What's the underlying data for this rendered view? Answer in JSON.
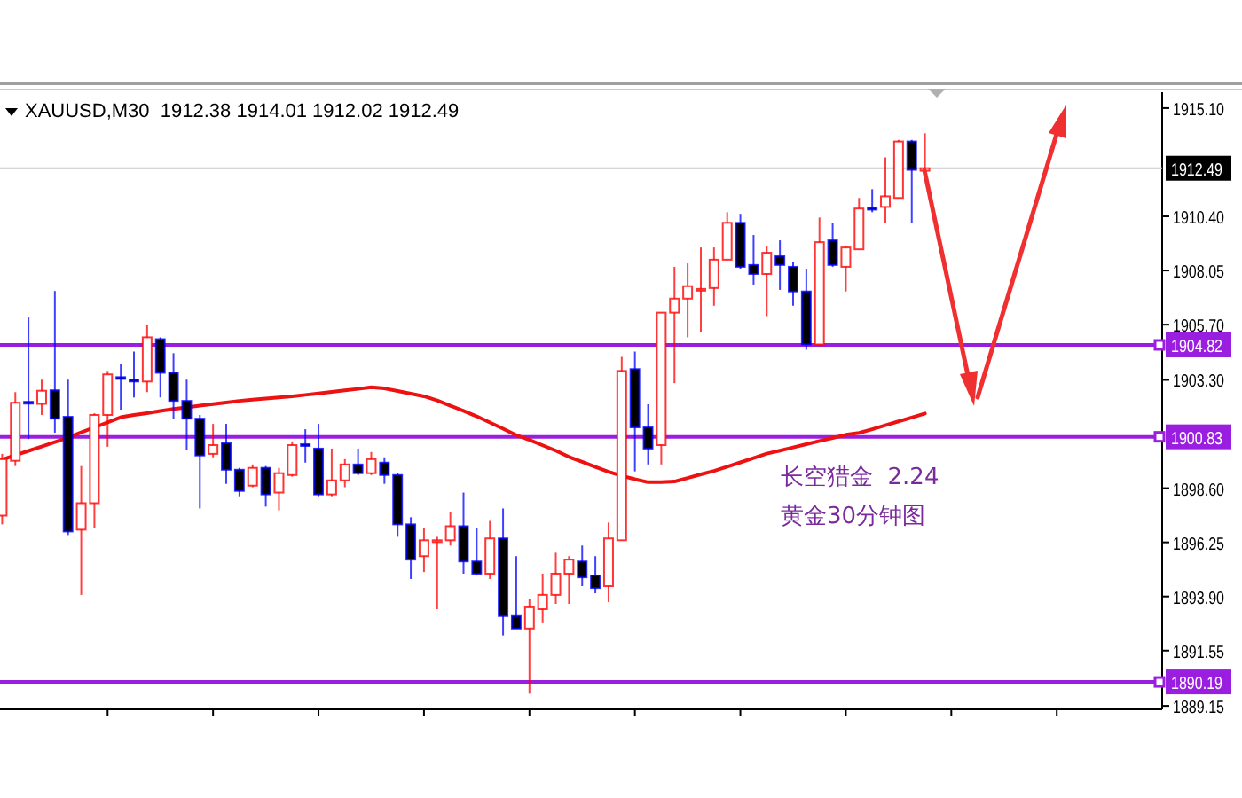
{
  "chart_data": {
    "type": "candlestick",
    "title": "XAUUSD,M30  1912.38 1914.01 1912.02 1912.49",
    "categories": [
      null,
      null,
      null,
      null,
      null,
      null,
      null,
      null,
      null,
      null,
      null,
      null,
      null,
      null,
      null,
      null,
      null,
      null,
      null,
      null,
      null,
      null,
      null,
      null,
      null,
      null,
      null,
      null,
      null,
      null,
      null,
      null,
      null,
      null,
      null,
      null,
      null,
      null,
      null,
      null,
      null,
      null,
      null,
      null,
      null,
      null,
      null,
      null,
      null,
      null,
      null,
      null,
      null,
      null,
      null,
      null,
      null,
      null,
      null,
      null,
      null,
      null,
      null,
      null,
      null,
      null,
      null,
      null,
      null,
      null,
      null
    ],
    "series": [
      {
        "type": "candlestick",
        "ohlc": [
          [
            1897.41,
            1900.09,
            1897.03,
            1899.86
          ],
          [
            1899.79,
            1902.77,
            1899.56,
            1902.31
          ],
          [
            1902.35,
            1906.01,
            1900.73,
            1902.27
          ],
          [
            1902.26,
            1903.31,
            1901.78,
            1902.83
          ],
          [
            1902.85,
            1907.16,
            1901.01,
            1901.62
          ],
          [
            1901.7,
            1903.31,
            1896.57,
            1896.72
          ],
          [
            1896.8,
            1899.56,
            1893.97,
            1897.95
          ],
          [
            1897.95,
            1901.85,
            1896.88,
            1901.78
          ],
          [
            1901.78,
            1903.69,
            1900.4,
            1903.54
          ],
          [
            1903.42,
            1904.0,
            1902.01,
            1903.35
          ],
          [
            1903.31,
            1904.53,
            1902.54,
            1903.23
          ],
          [
            1903.23,
            1905.68,
            1902.77,
            1905.15
          ],
          [
            1905.07,
            1905.15,
            1902.54,
            1903.61
          ],
          [
            1903.61,
            1904.46,
            1901.62,
            1902.39
          ],
          [
            1902.39,
            1903.31,
            1900.25,
            1901.62
          ],
          [
            1901.62,
            1901.78,
            1897.72,
            1900.02
          ],
          [
            1900.09,
            1901.39,
            1899.94,
            1900.47
          ],
          [
            1900.55,
            1901.39,
            1898.79,
            1899.4
          ],
          [
            1899.4,
            1899.48,
            1898.25,
            1898.48
          ],
          [
            1898.71,
            1899.63,
            1898.64,
            1899.48
          ],
          [
            1899.48,
            1899.56,
            1897.8,
            1898.33
          ],
          [
            1898.41,
            1899.48,
            1897.64,
            1899.25
          ],
          [
            1899.17,
            1900.63,
            1899.1,
            1900.47
          ],
          [
            1900.51,
            1901.16,
            1899.71,
            1900.44
          ],
          [
            1900.32,
            1901.39,
            1898.25,
            1898.33
          ],
          [
            1898.33,
            1900.32,
            1898.25,
            1898.94
          ],
          [
            1898.94,
            1899.86,
            1898.64,
            1899.63
          ],
          [
            1899.63,
            1900.32,
            1899.17,
            1899.25
          ],
          [
            1899.25,
            1900.17,
            1899.17,
            1899.86
          ],
          [
            1899.71,
            1899.94,
            1898.79,
            1899.17
          ],
          [
            1899.17,
            1899.25,
            1896.49,
            1897.03
          ],
          [
            1897.03,
            1897.34,
            1894.66,
            1895.5
          ],
          [
            1895.65,
            1896.88,
            1894.96,
            1896.34
          ],
          [
            1896.26,
            1896.49,
            1893.35,
            1896.34
          ],
          [
            1896.34,
            1897.56,
            1896.11,
            1896.95
          ],
          [
            1896.95,
            1898.41,
            1894.89,
            1895.42
          ],
          [
            1895.42,
            1896.88,
            1894.81,
            1894.89
          ],
          [
            1894.89,
            1897.18,
            1894.66,
            1896.42
          ],
          [
            1896.42,
            1897.72,
            1892.21,
            1893.05
          ],
          [
            1893.05,
            1895.65,
            1892.51,
            1892.51
          ],
          [
            1892.51,
            1893.81,
            1889.68,
            1893.43
          ],
          [
            1893.35,
            1894.89,
            1892.74,
            1893.97
          ],
          [
            1893.97,
            1895.8,
            1893.58,
            1894.89
          ],
          [
            1894.89,
            1895.65,
            1893.58,
            1895.5
          ],
          [
            1895.42,
            1896.11,
            1894.35,
            1894.73
          ],
          [
            1894.81,
            1895.65,
            1894.04,
            1894.27
          ],
          [
            1894.35,
            1897.11,
            1893.66,
            1896.42
          ],
          [
            1896.34,
            1904.3,
            1896.34,
            1903.69
          ],
          [
            1903.77,
            1904.53,
            1899.33,
            1901.24
          ],
          [
            1901.24,
            1902.24,
            1899.63,
            1900.32
          ],
          [
            1900.47,
            1906.22,
            1899.63,
            1906.22
          ],
          [
            1906.22,
            1908.21,
            1903.16,
            1906.83
          ],
          [
            1906.83,
            1908.36,
            1905.15,
            1907.37
          ],
          [
            1907.18,
            1909.05,
            1905.38,
            1907.25
          ],
          [
            1907.29,
            1909.05,
            1906.52,
            1908.52
          ],
          [
            1908.52,
            1910.58,
            1908.52,
            1910.12
          ],
          [
            1910.12,
            1910.51,
            1908.13,
            1908.21
          ],
          [
            1908.29,
            1909.59,
            1907.44,
            1907.9
          ],
          [
            1907.9,
            1909.13,
            1906.07,
            1908.82
          ],
          [
            1908.67,
            1909.36,
            1907.21,
            1908.29
          ],
          [
            1908.21,
            1908.44,
            1906.52,
            1907.14
          ],
          [
            1907.14,
            1908.13,
            1904.61,
            1904.84
          ],
          [
            1904.84,
            1910.35,
            1904.76,
            1909.28
          ],
          [
            1909.36,
            1910.12,
            1908.21,
            1908.29
          ],
          [
            1908.21,
            1909.13,
            1907.14,
            1909.05
          ],
          [
            1908.97,
            1911.2,
            1908.97,
            1910.74
          ],
          [
            1910.77,
            1911.58,
            1910.58,
            1910.7
          ],
          [
            1910.81,
            1912.96,
            1910.12,
            1911.27
          ],
          [
            1911.2,
            1913.72,
            1911.2,
            1913.65
          ],
          [
            1913.65,
            1913.72,
            1910.12,
            1912.42
          ],
          [
            1912.38,
            1914.01,
            1912.02,
            1912.49
          ]
        ],
        "colors": [
          "#ff0000",
          "#ff0000",
          "#0000ff",
          "#ff0000",
          "#0000ff",
          "#0000ff",
          "#ff0000",
          "#ff0000",
          "#ff0000",
          "#0000ff",
          "#0000ff",
          "#ff0000",
          "#0000ff",
          "#0000ff",
          "#0000ff",
          "#0000ff",
          "#ff0000",
          "#0000ff",
          "#0000ff",
          "#ff0000",
          "#0000ff",
          "#ff0000",
          "#ff0000",
          "#0000ff",
          "#0000ff",
          "#ff0000",
          "#ff0000",
          "#0000ff",
          "#ff0000",
          "#0000ff",
          "#0000ff",
          "#0000ff",
          "#ff0000",
          "#ff0000",
          "#ff0000",
          "#0000ff",
          "#0000ff",
          "#ff0000",
          "#0000ff",
          "#0000ff",
          "#ff0000",
          "#ff0000",
          "#ff0000",
          "#ff0000",
          "#0000ff",
          "#0000ff",
          "#ff0000",
          "#ff0000",
          "#0000ff",
          "#0000ff",
          "#ff0000",
          "#ff0000",
          "#ff0000",
          "#ff0000",
          "#ff0000",
          "#ff0000",
          "#0000ff",
          "#0000ff",
          "#ff0000",
          "#0000ff",
          "#0000ff",
          "#0000ff",
          "#ff0000",
          "#0000ff",
          "#ff0000",
          "#ff0000",
          "#0000ff",
          "#ff0000",
          "#ff0000",
          "#0000ff",
          "#ff0000"
        ]
      },
      {
        "type": "line",
        "color": "#ee1111",
        "values": [
          1899.84,
          1900.03,
          1900.22,
          1900.41,
          1900.6,
          1900.8,
          1901.02,
          1901.24,
          1901.46,
          1901.68,
          1901.78,
          1901.86,
          1901.95,
          1902.04,
          1902.11,
          1902.18,
          1902.25,
          1902.32,
          1902.39,
          1902.44,
          1902.49,
          1902.54,
          1902.59,
          1902.65,
          1902.71,
          1902.78,
          1902.85,
          1902.91,
          1902.98,
          1902.93,
          1902.82,
          1902.7,
          1902.59,
          1902.41,
          1902.18,
          1901.96,
          1901.72,
          1901.45,
          1901.18,
          1900.9,
          1900.7,
          1900.46,
          1900.23,
          1899.96,
          1899.74,
          1899.52,
          1899.31,
          1899.14,
          1898.99,
          1898.86,
          1898.86,
          1898.89,
          1899.04,
          1899.2,
          1899.35,
          1899.53,
          1899.72,
          1899.91,
          1900.1,
          1900.23,
          1900.37,
          1900.51,
          1900.65,
          1900.78,
          1900.92,
          1901.0,
          1901.16,
          1901.33,
          1901.5,
          1901.67,
          1901.84
        ]
      }
    ],
    "ylim": [
      1889.0,
      1915.79
    ],
    "yticks": [
      {
        "value": 1915.1,
        "label": "1915.10"
      },
      {
        "value": 1910.4,
        "label": "1910.40"
      },
      {
        "value": 1908.05,
        "label": "1908.05"
      },
      {
        "value": 1905.7,
        "label": "1905.70"
      },
      {
        "value": 1903.3,
        "label": "1903.30"
      },
      {
        "value": 1898.6,
        "label": "1898.60"
      },
      {
        "value": 1896.25,
        "label": "1896.25"
      },
      {
        "value": 1893.9,
        "label": "1893.90"
      },
      {
        "value": 1891.55,
        "label": "1891.55"
      },
      {
        "value": 1889.15,
        "label": "1889.15"
      }
    ],
    "tick_labels": "y",
    "ref_lines": [
      {
        "axis": "y",
        "value": 1912.49,
        "label": "1912.49",
        "color": "#c8c8c8"
      },
      {
        "axis": "y",
        "value": 1904.82,
        "label": "1904.82",
        "color": "#9a1ee0"
      },
      {
        "axis": "y",
        "value": 1900.83,
        "label": "1900.83",
        "color": "#9a1ee0"
      },
      {
        "axis": "y",
        "value": 1890.19,
        "label": "1890.19",
        "color": "#9a1ee0"
      }
    ],
    "annotations": [
      "长空猎金  2.24",
      "黄金30分钟图"
    ]
  }
}
